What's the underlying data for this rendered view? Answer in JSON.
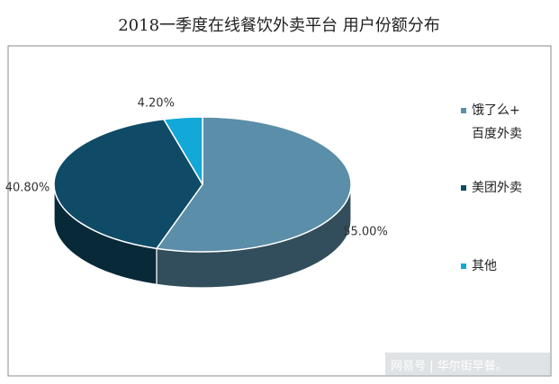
{
  "chart_data": {
    "type": "pie",
    "title": "2018一季度在线餐饮外卖平台 用户份额分布",
    "unit": "%",
    "slices": [
      {
        "name": "饿了么+百度外卖",
        "legend_lines": [
          "饿了么+",
          "百度外卖"
        ],
        "value": 55.0,
        "label": "55.00%",
        "color": "#5b8ea8"
      },
      {
        "name": "美团外卖",
        "legend_lines": [
          "美团外卖"
        ],
        "value": 40.8,
        "label": "40.80%",
        "color": "#0f4a66"
      },
      {
        "name": "其他",
        "legend_lines": [
          "其他"
        ],
        "value": 4.2,
        "label": "4.20%",
        "color": "#12a8d8"
      }
    ],
    "legend_position": "right",
    "grid": false,
    "style": "3d"
  },
  "watermark": {
    "text": "网易号 | 华尔街早餐。"
  }
}
